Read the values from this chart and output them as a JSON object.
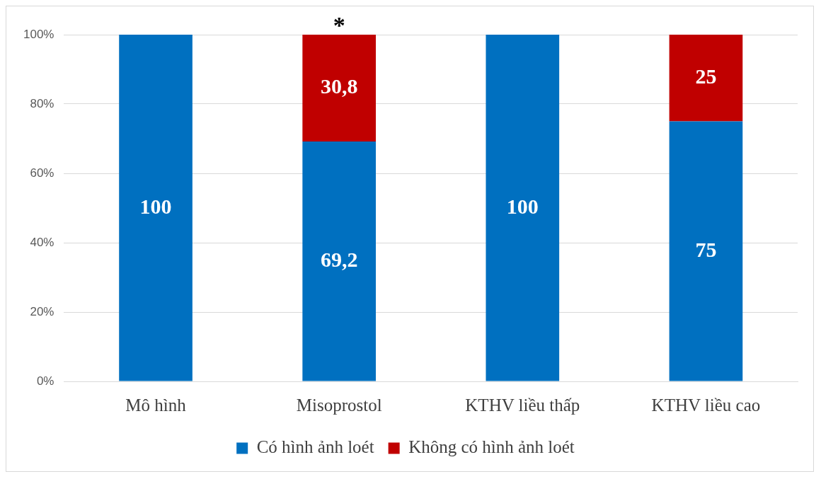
{
  "chart_data": {
    "type": "bar",
    "stacked": true,
    "categories": [
      "Mô hình",
      "Misoprostol",
      "KTHV liều thấp",
      "KTHV liều cao"
    ],
    "series": [
      {
        "name": "Có hình ảnh loét",
        "color": "#0070c0",
        "values": [
          100,
          69.2,
          100,
          75
        ],
        "value_labels": [
          "100",
          "69,2",
          "100",
          "75"
        ]
      },
      {
        "name": "Không có hình ảnh loét",
        "color": "#c00000",
        "values": [
          null,
          30.8,
          null,
          25
        ],
        "value_labels": [
          null,
          "30,8",
          null,
          "25"
        ]
      }
    ],
    "ylim": [
      0,
      100
    ],
    "yticks": [
      {
        "value": 0,
        "label": "0%"
      },
      {
        "value": 20,
        "label": "20%"
      },
      {
        "value": 40,
        "label": "40%"
      },
      {
        "value": 60,
        "label": "60%"
      },
      {
        "value": 80,
        "label": "80%"
      },
      {
        "value": 100,
        "label": "100%"
      }
    ],
    "grid": "y",
    "legend": "bottom",
    "annotations": [
      {
        "text": "*",
        "x": "Misoprostol",
        "y": 100
      }
    ]
  }
}
